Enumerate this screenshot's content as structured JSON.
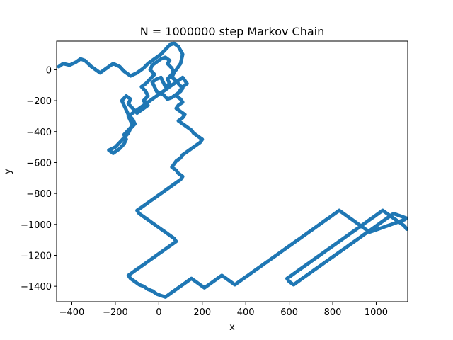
{
  "chart_data": {
    "type": "line",
    "title": "N = 1000000 step Markov Chain",
    "xlabel": "x",
    "ylabel": "y",
    "xlim": [
      -470,
      1145
    ],
    "ylim": [
      -1500,
      185
    ],
    "xticks": [
      -400,
      -200,
      0,
      200,
      400,
      600,
      800,
      1000
    ],
    "yticks": [
      0,
      -200,
      -400,
      -600,
      -800,
      -1000,
      -1200,
      -1400
    ],
    "tick_labels_x": [
      "−400",
      "−200",
      "0",
      "200",
      "400",
      "600",
      "800",
      "1000"
    ],
    "tick_labels_y": [
      "0",
      "−200",
      "−400",
      "−600",
      "−800",
      "−1000",
      "−1200",
      "−1400"
    ],
    "grid": false,
    "line_color": "#1f77b4",
    "series": [
      {
        "x": [
          -460,
          -440,
          -410,
          -380,
          -360,
          -340,
          -310,
          -290,
          -270,
          -240,
          -210,
          -180,
          -160,
          -130,
          -100,
          -70,
          -50,
          -30,
          -10,
          10,
          30,
          50,
          70,
          90,
          110,
          100,
          80,
          60,
          40,
          50,
          30,
          20,
          10,
          -10,
          -30,
          -20,
          -10,
          20,
          40,
          60,
          80,
          100,
          110,
          90,
          80,
          60,
          70,
          60,
          40,
          50,
          30,
          10,
          -10,
          -30,
          -40,
          -20,
          -40,
          -60,
          -80,
          -60,
          -50,
          -70,
          -50,
          -80,
          -100,
          -120,
          -140,
          -130,
          -150,
          -170,
          -160,
          -150,
          -140,
          -120,
          -110,
          -130,
          -140,
          -160,
          -180,
          -200,
          -230,
          -210,
          -180,
          -160,
          -150,
          -160,
          -140,
          -120,
          -130,
          -140,
          -110,
          -90,
          -70,
          -50,
          -30,
          -10,
          10,
          30,
          50,
          70,
          90,
          110,
          120,
          130,
          110,
          100,
          90,
          80,
          100,
          110,
          90,
          80,
          100,
          120,
          110,
          90,
          110,
          130,
          150,
          160,
          180,
          200,
          190,
          170,
          150,
          130,
          110,
          100,
          80,
          70,
          60,
          80,
          90,
          110,
          100,
          80,
          60,
          40,
          20,
          0,
          -20,
          -40,
          -60,
          -80,
          -100,
          -90,
          -70,
          -50,
          -30,
          -10,
          10,
          30,
          50,
          70,
          80,
          60,
          40,
          20,
          0,
          -20,
          -40,
          -60,
          -80,
          -100,
          -120,
          -140,
          -130,
          -110,
          -90,
          -70,
          -50,
          -30,
          -10,
          10,
          30,
          50,
          70,
          90,
          110,
          130,
          150,
          170,
          190,
          210,
          230,
          250,
          270,
          290,
          310,
          330,
          350,
          370,
          390,
          410,
          430,
          450,
          470,
          490,
          510,
          530,
          550,
          570,
          590,
          610,
          630,
          650,
          670,
          690,
          710,
          730,
          750,
          770,
          790,
          810,
          830,
          850,
          870,
          890,
          910,
          930,
          950,
          970,
          990,
          1010,
          1030,
          1050,
          1070,
          1090,
          1110,
          1130,
          1140,
          1120,
          1100,
          1080,
          1060,
          1040,
          1020,
          1000,
          980,
          960,
          940,
          920,
          900,
          880,
          860,
          840,
          820,
          800,
          780,
          760,
          740,
          720,
          700,
          680,
          660,
          640,
          620,
          600,
          590,
          610,
          630,
          650,
          670,
          690,
          710,
          730,
          750,
          770,
          790,
          810,
          830,
          850,
          870,
          890,
          910,
          930,
          950,
          970,
          990,
          1010,
          1030,
          1050,
          1070,
          1090,
          1110,
          1130,
          1140
        ],
        "y": [
          20,
          40,
          30,
          50,
          70,
          60,
          20,
          0,
          -20,
          10,
          40,
          20,
          -10,
          -40,
          -20,
          10,
          40,
          60,
          80,
          100,
          130,
          160,
          170,
          150,
          100,
          40,
          0,
          -30,
          -60,
          -90,
          -110,
          -80,
          -50,
          -60,
          -80,
          -110,
          -140,
          -160,
          -190,
          -180,
          -160,
          -140,
          -120,
          -90,
          -70,
          -50,
          -20,
          10,
          40,
          60,
          80,
          70,
          50,
          30,
          0,
          -30,
          -60,
          -90,
          -110,
          -140,
          -170,
          -200,
          -230,
          -260,
          -280,
          -250,
          -220,
          -190,
          -170,
          -200,
          -230,
          -260,
          -290,
          -320,
          -350,
          -380,
          -410,
          -440,
          -470,
          -500,
          -520,
          -540,
          -510,
          -480,
          -450,
          -420,
          -390,
          -360,
          -330,
          -300,
          -270,
          -250,
          -230,
          -210,
          -190,
          -170,
          -150,
          -130,
          -110,
          -90,
          -70,
          -50,
          -70,
          -90,
          -110,
          -130,
          -150,
          -170,
          -190,
          -210,
          -230,
          -250,
          -270,
          -290,
          -310,
          -330,
          -350,
          -370,
          -390,
          -410,
          -430,
          -450,
          -470,
          -490,
          -510,
          -530,
          -550,
          -570,
          -590,
          -610,
          -630,
          -650,
          -670,
          -690,
          -710,
          -730,
          -750,
          -770,
          -790,
          -810,
          -830,
          -850,
          -870,
          -890,
          -910,
          -930,
          -950,
          -970,
          -990,
          -1010,
          -1030,
          -1050,
          -1070,
          -1090,
          -1110,
          -1130,
          -1150,
          -1170,
          -1190,
          -1210,
          -1230,
          -1250,
          -1270,
          -1290,
          -1310,
          -1330,
          -1350,
          -1370,
          -1390,
          -1400,
          -1420,
          -1430,
          -1450,
          -1460,
          -1470,
          -1450,
          -1430,
          -1410,
          -1390,
          -1370,
          -1350,
          -1370,
          -1390,
          -1410,
          -1390,
          -1370,
          -1350,
          -1330,
          -1350,
          -1370,
          -1390,
          -1370,
          -1350,
          -1330,
          -1310,
          -1290,
          -1270,
          -1250,
          -1230,
          -1210,
          -1190,
          -1170,
          -1150,
          -1130,
          -1110,
          -1090,
          -1070,
          -1050,
          -1030,
          -1010,
          -990,
          -970,
          -950,
          -930,
          -910,
          -930,
          -950,
          -970,
          -990,
          -1010,
          -1030,
          -1050,
          -1040,
          -1030,
          -1020,
          -1010,
          -1000,
          -990,
          -980,
          -970,
          -960,
          -950,
          -940,
          -930,
          -950,
          -970,
          -990,
          -1010,
          -1030,
          -1050,
          -1070,
          -1090,
          -1110,
          -1130,
          -1150,
          -1170,
          -1190,
          -1210,
          -1230,
          -1250,
          -1270,
          -1290,
          -1310,
          -1330,
          -1350,
          -1370,
          -1390,
          -1370,
          -1350,
          -1330,
          -1310,
          -1290,
          -1270,
          -1250,
          -1230,
          -1210,
          -1190,
          -1170,
          -1150,
          -1130,
          -1110,
          -1090,
          -1070,
          -1050,
          -1030,
          -1010,
          -990,
          -970,
          -950,
          -930,
          -910,
          -930,
          -950,
          -970,
          -990,
          -1010,
          -1030
        ]
      }
    ]
  }
}
